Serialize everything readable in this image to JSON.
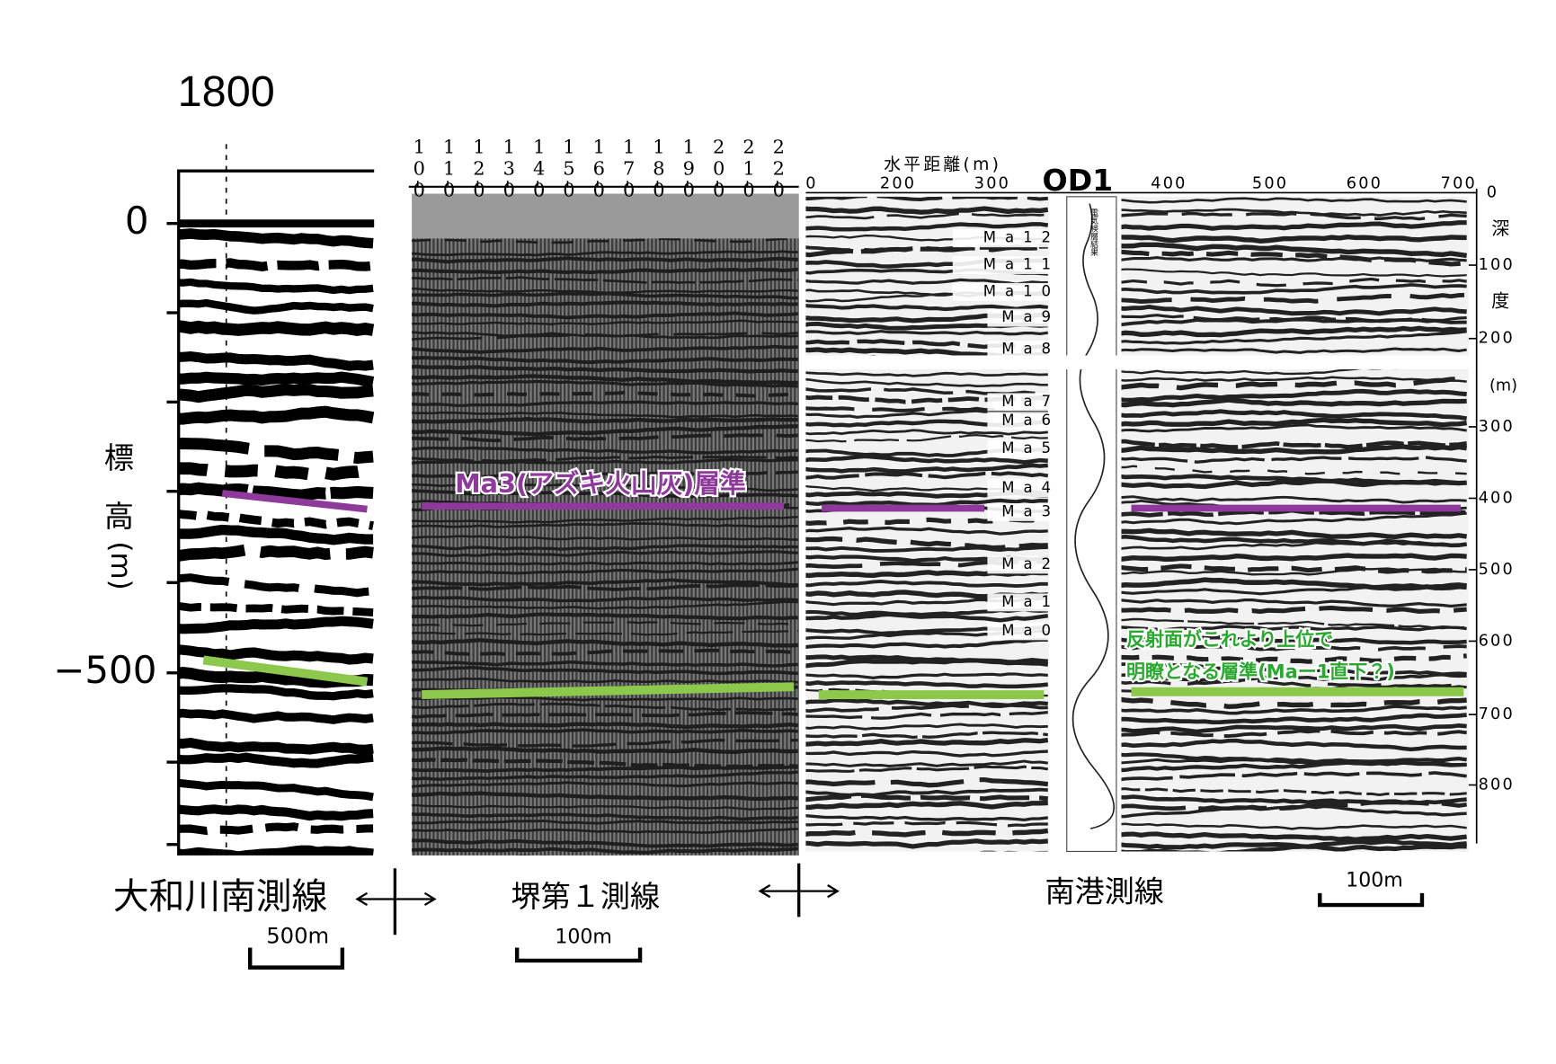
{
  "left_panel": {
    "x_label": "1800",
    "y_ticks": [
      "0",
      "−500"
    ],
    "y_axis_label": [
      "標",
      "高",
      "(m)"
    ]
  },
  "middle_panel": {
    "cdp_labels": [
      "100",
      "110",
      "120",
      "130",
      "140",
      "150",
      "160",
      "170",
      "180",
      "190",
      "200",
      "210",
      "220"
    ]
  },
  "right_panel": {
    "x_axis_title": "水平距離(m)",
    "x_ticks": [
      "0",
      "200",
      "300",
      "400",
      "500",
      "600",
      "700"
    ],
    "well_label": "OD1",
    "log_label": "電気検層結果",
    "depth_ticks": [
      "0",
      "100",
      "200",
      "300",
      "400",
      "500",
      "600",
      "700",
      "800"
    ],
    "depth_axis_label": [
      "深",
      "度",
      "(m)"
    ],
    "horizons": [
      "Ma12",
      "Ma11",
      "Ma10",
      "Ma9",
      "Ma8",
      "Ma7",
      "Ma6",
      "Ma5",
      "Ma4",
      "Ma3",
      "Ma2",
      "Ma1",
      "Ma0"
    ]
  },
  "annotations": {
    "ma3": "Ma3(アズキ火山灰)層準",
    "reflector": [
      "反射面がこれより上位で",
      "明瞭となる層準(Maー1直下？)"
    ]
  },
  "footer": {
    "left_line": "大和川南測線",
    "left_scale": "500m",
    "middle_line": "堺第１測線",
    "middle_scale": "100m",
    "right_line": "南港測線",
    "right_scale": "100m"
  }
}
